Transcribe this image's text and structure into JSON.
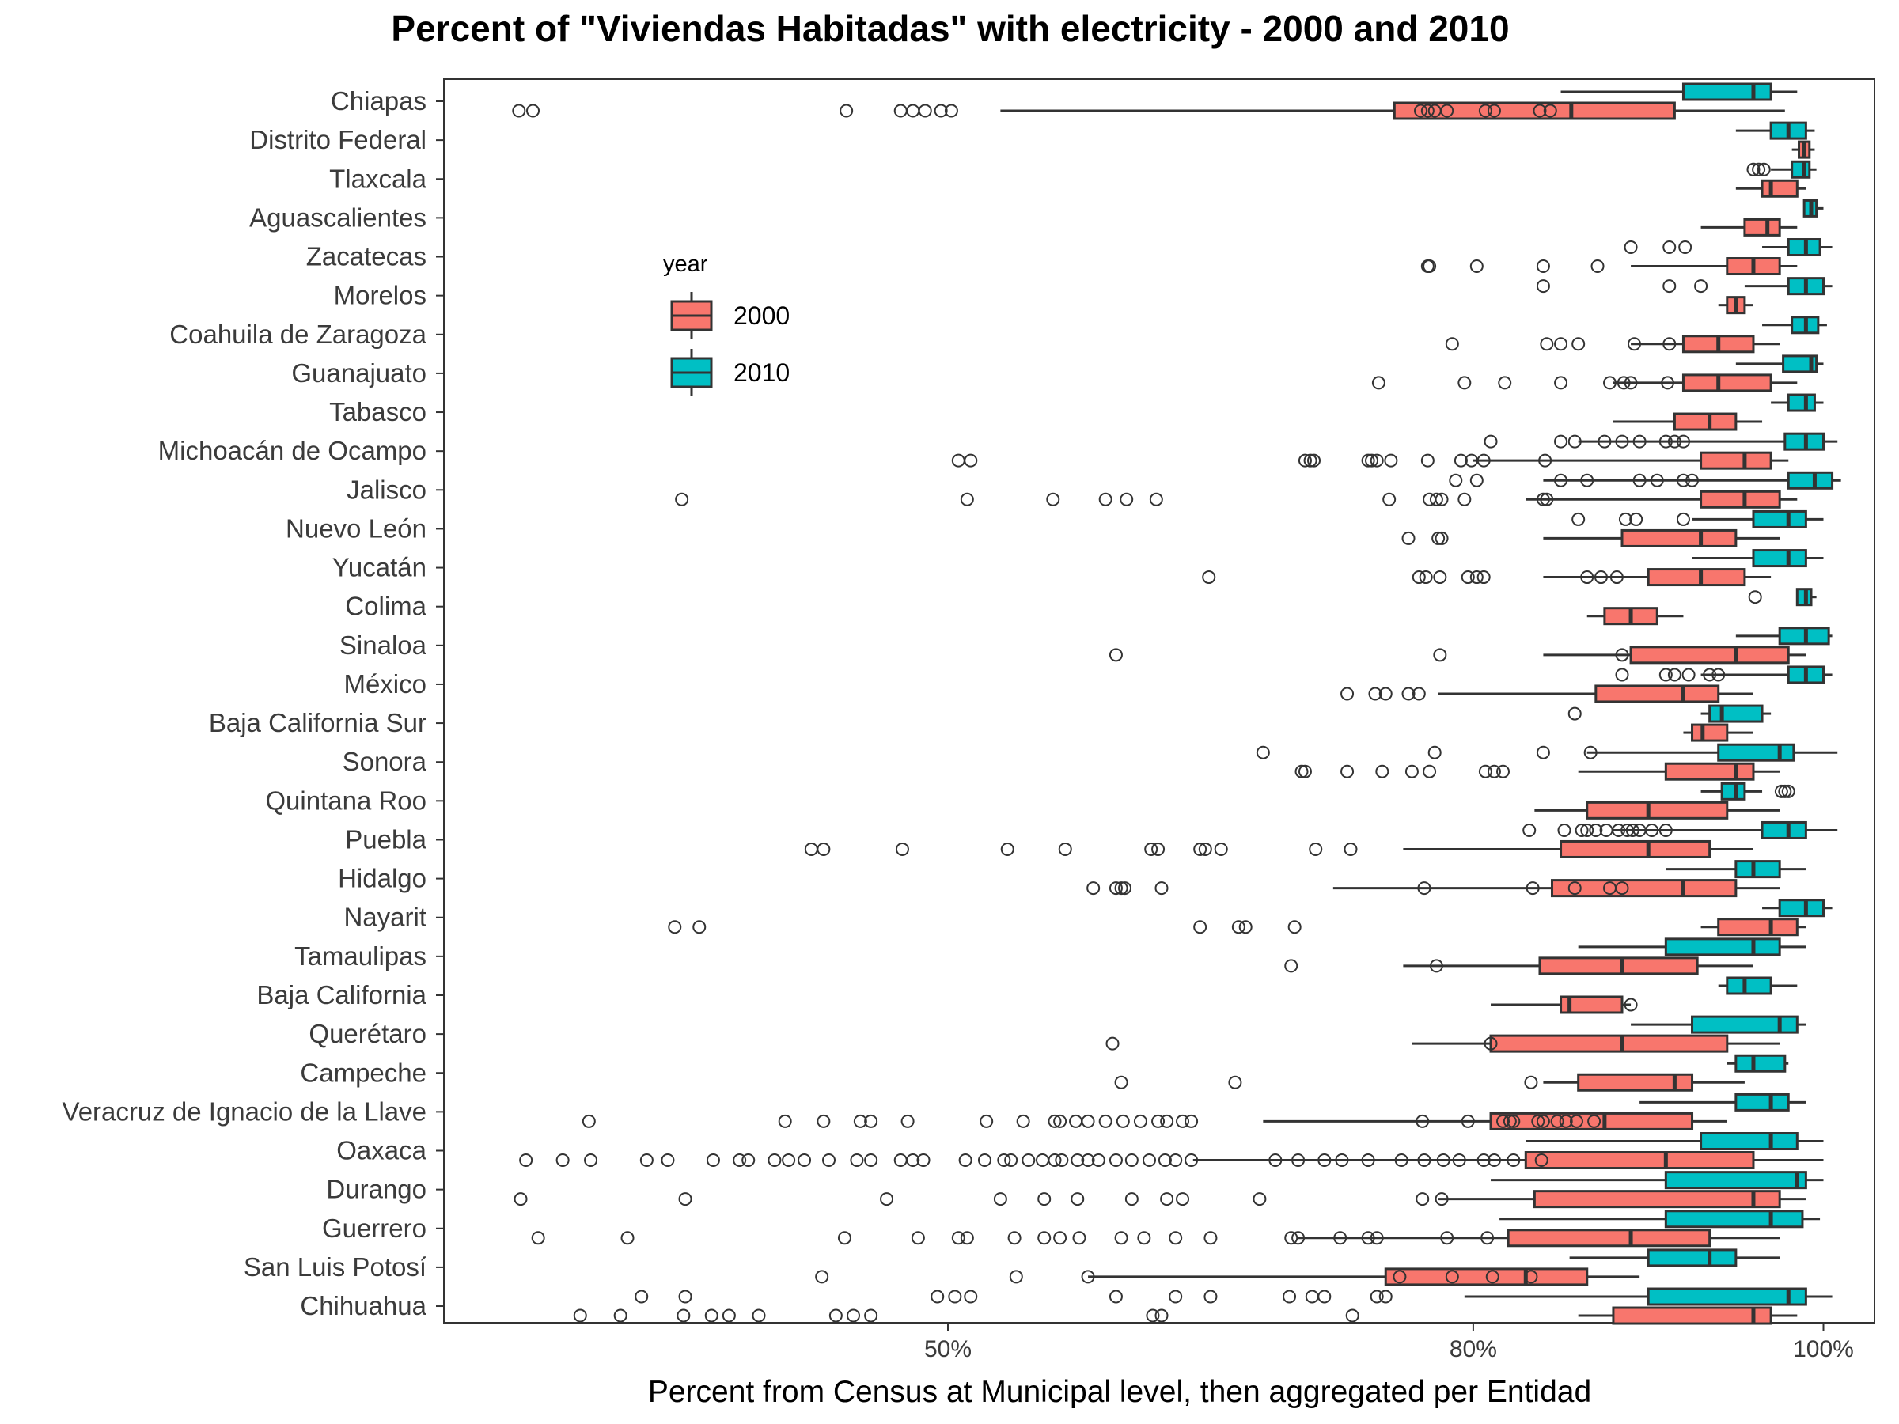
{
  "chart_data": {
    "type": "boxplot",
    "title": "Percent of \"Viviendas Habitadas\" with electricity - 2000 and 2010",
    "xlabel": "Percent from Census at Municipal level, then aggregated per Entidad",
    "ylabel": "",
    "xlim": [
      22,
      103
    ],
    "x_ticks": [
      50,
      80,
      100
    ],
    "x_tick_labels": [
      "50%",
      "80%",
      "100%"
    ],
    "grid": false,
    "legend": {
      "title": "year",
      "position": "left-inside-top",
      "entries": [
        "2000",
        "2010"
      ]
    },
    "colors": {
      "2000": "#f8766d",
      "2010": "#00bfc4"
    },
    "series_order": [
      "2000",
      "2010"
    ],
    "categories": [
      "Chiapas",
      "Distrito Federal",
      "Tlaxcala",
      "Aguascalientes",
      "Zacatecas",
      "Morelos",
      "Coahuila de Zaragoza",
      "Guanajuato",
      "Tabasco",
      "Michoacán de Ocampo",
      "Jalisco",
      "Nuevo León",
      "Yucatán",
      "Colima",
      "Sinaloa",
      "México",
      "Baja California Sur",
      "Sonora",
      "Quintana Roo",
      "Puebla",
      "Hidalgo",
      "Nayarit",
      "Tamaulipas",
      "Baja California",
      "Querétaro",
      "Campeche",
      "Veracruz de Ignacio de la Llave",
      "Oaxaca",
      "Durango",
      "Guerrero",
      "San Luis Potosí",
      "Chihuahua"
    ],
    "boxes": [
      {
        "category": "Chiapas",
        "year": "2000",
        "wlo": 53,
        "q1": 75.5,
        "med": 85.6,
        "q3": 91.5,
        "whi": 97.8,
        "out": [
          25.5,
          26.3,
          44.2,
          47.3,
          48.0,
          48.7,
          49.6,
          50.2,
          77.0,
          77.4,
          77.8,
          78.5,
          80.7,
          81.2,
          83.8,
          84.4
        ]
      },
      {
        "category": "Chiapas",
        "year": "2010",
        "wlo": 85,
        "q1": 92,
        "med": 96,
        "q3": 97,
        "whi": 98.5,
        "out": []
      },
      {
        "category": "Distrito Federal",
        "year": "2000",
        "wlo": 98.2,
        "q1": 98.6,
        "med": 98.9,
        "q3": 99.2,
        "whi": 99.5,
        "out": []
      },
      {
        "category": "Distrito Federal",
        "year": "2010",
        "wlo": 95,
        "q1": 97,
        "med": 98,
        "q3": 99,
        "whi": 99.5,
        "out": []
      },
      {
        "category": "Tlaxcala",
        "year": "2000",
        "wlo": 95,
        "q1": 96.5,
        "med": 97,
        "q3": 98.5,
        "whi": 99,
        "out": []
      },
      {
        "category": "Tlaxcala",
        "year": "2010",
        "wlo": 97,
        "q1": 98.2,
        "med": 98.9,
        "q3": 99.2,
        "whi": 99.6,
        "out": [
          96,
          96.3,
          96.6
        ]
      },
      {
        "category": "Aguascalientes",
        "year": "2000",
        "wlo": 93,
        "q1": 95.5,
        "med": 96.8,
        "q3": 97.5,
        "whi": 98.5,
        "out": []
      },
      {
        "category": "Aguascalientes",
        "year": "2010",
        "wlo": 99.3,
        "q1": 98.9,
        "med": 99.3,
        "q3": 99.6,
        "whi": 100,
        "out": []
      },
      {
        "category": "Zacatecas",
        "year": "2000",
        "wlo": 89,
        "q1": 94.5,
        "med": 96,
        "q3": 97.5,
        "whi": 98.5,
        "out": [
          77.4,
          77.5,
          80.2,
          84,
          87.1
        ]
      },
      {
        "category": "Zacatecas",
        "year": "2010",
        "wlo": 96.5,
        "q1": 98,
        "med": 99,
        "q3": 99.8,
        "whi": 100.5,
        "out": [
          89,
          91.2,
          92.1
        ]
      },
      {
        "category": "Morelos",
        "year": "2000",
        "wlo": 94,
        "q1": 94.5,
        "med": 95,
        "q3": 95.5,
        "whi": 96,
        "out": []
      },
      {
        "category": "Morelos",
        "year": "2010",
        "wlo": 95.5,
        "q1": 98,
        "med": 99,
        "q3": 100,
        "whi": 100.5,
        "out": [
          84,
          91.2,
          93
        ]
      },
      {
        "category": "Coahuila de Zaragoza",
        "year": "2000",
        "wlo": 89,
        "q1": 92,
        "med": 94,
        "q3": 96,
        "whi": 97.5,
        "out": [
          78.8,
          84.2,
          85,
          86,
          89.2,
          91.2
        ]
      },
      {
        "category": "Coahuila de Zaragoza",
        "year": "2010",
        "wlo": 96.5,
        "q1": 98.2,
        "med": 99,
        "q3": 99.7,
        "whi": 100.2,
        "out": []
      },
      {
        "category": "Guanajuato",
        "year": "2000",
        "wlo": 88,
        "q1": 92,
        "med": 94,
        "q3": 97,
        "whi": 98.5,
        "out": [
          74.6,
          79.5,
          81.8,
          85,
          87.8,
          88.6,
          89,
          91.1
        ]
      },
      {
        "category": "Guanajuato",
        "year": "2010",
        "wlo": 95,
        "q1": 97.7,
        "med": 99.3,
        "q3": 99.6,
        "whi": 100,
        "out": []
      },
      {
        "category": "Tabasco",
        "year": "2000",
        "wlo": 88,
        "q1": 91.5,
        "med": 93.5,
        "q3": 95,
        "whi": 96.5,
        "out": []
      },
      {
        "category": "Tabasco",
        "year": "2010",
        "wlo": 97,
        "q1": 98,
        "med": 99,
        "q3": 99.5,
        "whi": 100,
        "out": []
      },
      {
        "category": "Michoacán de Ocampo",
        "year": "2000",
        "wlo": 80,
        "q1": 93,
        "med": 95.5,
        "q3": 97,
        "whi": 98,
        "out": [
          50.6,
          51.3,
          70.4,
          70.7,
          70.9,
          74,
          74.2,
          74.5,
          75.3,
          77.4,
          79.3,
          79.9,
          80.6,
          84.1
        ]
      },
      {
        "category": "Michoacán de Ocampo",
        "year": "2010",
        "wlo": 86,
        "q1": 97.8,
        "med": 99,
        "q3": 100,
        "whi": 100.8,
        "out": [
          81,
          85,
          85.8,
          87.5,
          88.5,
          89.5,
          91,
          91.5,
          92
        ]
      },
      {
        "category": "Jalisco",
        "year": "2000",
        "wlo": 83,
        "q1": 93,
        "med": 95.5,
        "q3": 97.5,
        "whi": 98.5,
        "out": [
          34.8,
          51.1,
          56,
          59,
          60.2,
          61.9,
          75.2,
          77.5,
          77.9,
          78.2,
          79.5,
          84,
          84.2
        ]
      },
      {
        "category": "Jalisco",
        "year": "2010",
        "wlo": 84,
        "q1": 98,
        "med": 99.5,
        "q3": 100.5,
        "whi": 101,
        "out": [
          79,
          80.2,
          85,
          86.5,
          89.5,
          90.5,
          92,
          92.5
        ]
      },
      {
        "category": "Nuevo León",
        "year": "2000",
        "wlo": 84,
        "q1": 88.5,
        "med": 93,
        "q3": 95,
        "whi": 97.5,
        "out": [
          76.3,
          78,
          78.2
        ]
      },
      {
        "category": "Nuevo León",
        "year": "2010",
        "wlo": 92.5,
        "q1": 96,
        "med": 98,
        "q3": 99,
        "whi": 100,
        "out": [
          86,
          88.7,
          89.3,
          92
        ]
      },
      {
        "category": "Yucatán",
        "year": "2000",
        "wlo": 84,
        "q1": 90,
        "med": 93,
        "q3": 95.5,
        "whi": 97,
        "out": [
          64.9,
          76.9,
          77.3,
          78.1,
          79.7,
          80.2,
          80.6,
          86.5,
          87.3,
          88.2
        ]
      },
      {
        "category": "Yucatán",
        "year": "2010",
        "wlo": 92.5,
        "q1": 96,
        "med": 98,
        "q3": 99,
        "whi": 100,
        "out": []
      },
      {
        "category": "Colima",
        "year": "2000",
        "wlo": 86.5,
        "q1": 87.5,
        "med": 89,
        "q3": 90.5,
        "whi": 92,
        "out": []
      },
      {
        "category": "Colima",
        "year": "2010",
        "wlo": 98.5,
        "q1": 98.5,
        "med": 99,
        "q3": 99.3,
        "whi": 99.6,
        "out": [
          96.1
        ]
      },
      {
        "category": "Sinaloa",
        "year": "2000",
        "wlo": 84,
        "q1": 89,
        "med": 95,
        "q3": 98,
        "whi": 99,
        "out": [
          59.6,
          78.1,
          88.5
        ]
      },
      {
        "category": "Sinaloa",
        "year": "2010",
        "wlo": 95,
        "q1": 97.5,
        "med": 99,
        "q3": 100.3,
        "whi": 100.5,
        "out": []
      },
      {
        "category": "México",
        "year": "2000",
        "wlo": 78,
        "q1": 87,
        "med": 92,
        "q3": 94,
        "whi": 96,
        "out": [
          72.8,
          74.4,
          75,
          76.3,
          76.9
        ]
      },
      {
        "category": "México",
        "year": "2010",
        "wlo": 93,
        "q1": 98,
        "med": 99,
        "q3": 100,
        "whi": 100.5,
        "out": [
          88.5,
          91,
          91.5,
          92.3,
          93.5,
          94
        ]
      },
      {
        "category": "Baja California Sur",
        "year": "2000",
        "wlo": 92,
        "q1": 92.5,
        "med": 93.1,
        "q3": 94.5,
        "whi": 96,
        "out": []
      },
      {
        "category": "Baja California Sur",
        "year": "2010",
        "wlo": 93,
        "q1": 93.5,
        "med": 94.2,
        "q3": 96.5,
        "whi": 97,
        "out": [
          85.8
        ]
      },
      {
        "category": "Sonora",
        "year": "2000",
        "wlo": 86,
        "q1": 91,
        "med": 95,
        "q3": 96,
        "whi": 97.5,
        "out": [
          70.2,
          70.4,
          72.8,
          74.8,
          76.5,
          77.5,
          80.7,
          81.2,
          81.7
        ]
      },
      {
        "category": "Sonora",
        "year": "2010",
        "wlo": 86.5,
        "q1": 94,
        "med": 97.5,
        "q3": 98.3,
        "whi": 100.8,
        "out": [
          68,
          77.8,
          84,
          86.7
        ]
      },
      {
        "category": "Quintana Roo",
        "year": "2000",
        "wlo": 83.5,
        "q1": 86.5,
        "med": 90,
        "q3": 94.5,
        "whi": 97.5,
        "out": []
      },
      {
        "category": "Quintana Roo",
        "year": "2010",
        "wlo": 93,
        "q1": 94.2,
        "med": 95,
        "q3": 95.5,
        "whi": 96.5,
        "out": [
          97.6,
          97.8,
          98
        ]
      },
      {
        "category": "Puebla",
        "year": "2000",
        "wlo": 76,
        "q1": 85,
        "med": 90,
        "q3": 93.5,
        "whi": 96,
        "out": [
          42.2,
          42.9,
          47.4,
          53.4,
          56.7,
          61.6,
          62,
          64.4,
          64.7,
          65.6,
          71,
          73
        ]
      },
      {
        "category": "Puebla",
        "year": "2010",
        "wlo": 88,
        "q1": 96.5,
        "med": 98,
        "q3": 99,
        "whi": 100.8,
        "out": [
          83.2,
          85.2,
          86.2,
          86.5,
          87,
          87.6,
          88.3,
          88.8,
          89.1,
          89.5,
          90.2,
          91
        ]
      },
      {
        "category": "Hidalgo",
        "year": "2000",
        "wlo": 72,
        "q1": 84.5,
        "med": 92,
        "q3": 95,
        "whi": 97.5,
        "out": [
          58.3,
          59.6,
          59.9,
          60.1,
          62.2,
          77.2,
          83.4,
          85.8,
          87.8,
          88.5
        ]
      },
      {
        "category": "Hidalgo",
        "year": "2010",
        "wlo": 91,
        "q1": 95,
        "med": 96,
        "q3": 97.5,
        "whi": 99,
        "out": []
      },
      {
        "category": "Nayarit",
        "year": "2000",
        "wlo": 93,
        "q1": 94,
        "med": 97,
        "q3": 98.5,
        "whi": 99,
        "out": [
          34.4,
          35.8,
          64.4,
          66.6,
          67,
          69.8
        ]
      },
      {
        "category": "Nayarit",
        "year": "2010",
        "wlo": 96.5,
        "q1": 97.5,
        "med": 99,
        "q3": 100,
        "whi": 100.5,
        "out": []
      },
      {
        "category": "Tamaulipas",
        "year": "2000",
        "wlo": 76,
        "q1": 83.8,
        "med": 88.5,
        "q3": 92.8,
        "whi": 96,
        "out": [
          69.6,
          77.9
        ]
      },
      {
        "category": "Tamaulipas",
        "year": "2010",
        "wlo": 86,
        "q1": 91,
        "med": 96,
        "q3": 97.5,
        "whi": 99,
        "out": []
      },
      {
        "category": "Baja California",
        "year": "2000",
        "wlo": 81,
        "q1": 85,
        "med": 85.5,
        "q3": 88.5,
        "whi": 89,
        "out": [
          89
        ]
      },
      {
        "category": "Baja California",
        "year": "2010",
        "wlo": 94,
        "q1": 94.5,
        "med": 95.5,
        "q3": 97,
        "whi": 98.5,
        "out": []
      },
      {
        "category": "Querétaro",
        "year": "2000",
        "wlo": 76.5,
        "q1": 81,
        "med": 88.5,
        "q3": 94.5,
        "whi": 97.5,
        "out": [
          59.4,
          81
        ]
      },
      {
        "category": "Querétaro",
        "year": "2010",
        "wlo": 89,
        "q1": 92.5,
        "med": 97.5,
        "q3": 98.5,
        "whi": 99,
        "out": []
      },
      {
        "category": "Campeche",
        "year": "2000",
        "wlo": 84,
        "q1": 86,
        "med": 91.5,
        "q3": 92.5,
        "whi": 95.5,
        "out": [
          59.9,
          66.4,
          83.3
        ]
      },
      {
        "category": "Campeche",
        "year": "2010",
        "wlo": 94.5,
        "q1": 95,
        "med": 96,
        "q3": 97.8,
        "whi": 98,
        "out": []
      },
      {
        "category": "Veracruz de Ignacio de la Llave",
        "year": "2000",
        "wlo": 68,
        "q1": 81,
        "med": 87.5,
        "q3": 92.5,
        "whi": 94.5,
        "out": [
          29.5,
          40.7,
          42.9,
          45,
          45.6,
          47.7,
          52.2,
          54.3,
          56.1,
          56.4,
          57.3,
          58,
          59,
          60,
          61,
          62,
          62.5,
          63.4,
          63.9,
          77.1,
          79.7,
          81.7,
          82.1,
          82.3,
          83.7,
          84,
          84.8,
          85.3,
          85.9,
          86.9
        ]
      },
      {
        "category": "Veracruz de Ignacio de la Llave",
        "year": "2010",
        "wlo": 89.5,
        "q1": 95,
        "med": 97,
        "q3": 98,
        "whi": 99,
        "out": []
      },
      {
        "category": "Oaxaca",
        "year": "2000",
        "wlo": 64,
        "q1": 83,
        "med": 91,
        "q3": 96,
        "whi": 100,
        "out": [
          25.9,
          28,
          29.6,
          32.8,
          34,
          36.6,
          38.1,
          38.6,
          40.1,
          40.9,
          41.8,
          43.2,
          44.8,
          45.6,
          47.3,
          48,
          48.6,
          51,
          52.1,
          53.2,
          53.6,
          54.6,
          55.4,
          56.1,
          56.5,
          57.4,
          58,
          58.6,
          59.6,
          60.5,
          61.5,
          62.4,
          63,
          63.9,
          68.7,
          70,
          71.5,
          72.5,
          74,
          75.9,
          77.2,
          78.3,
          79.2,
          80.6,
          81.2,
          82.3,
          83.9
        ]
      },
      {
        "category": "Oaxaca",
        "year": "2010",
        "wlo": 83,
        "q1": 93,
        "med": 97,
        "q3": 98.5,
        "whi": 100,
        "out": []
      },
      {
        "category": "Durango",
        "year": "2000",
        "wlo": 78,
        "q1": 83.5,
        "med": 96,
        "q3": 97.5,
        "whi": 99,
        "out": [
          25.6,
          35,
          46.5,
          53,
          55.5,
          57.4,
          60.5,
          62.5,
          63.4,
          67.8,
          77.1,
          78.2
        ]
      },
      {
        "category": "Durango",
        "year": "2010",
        "wlo": 81,
        "q1": 91,
        "med": 98.5,
        "q3": 99,
        "whi": 100,
        "out": []
      },
      {
        "category": "Guerrero",
        "year": "2000",
        "wlo": 70,
        "q1": 82,
        "med": 89,
        "q3": 93.5,
        "whi": 97.5,
        "out": [
          26.6,
          31.7,
          44.1,
          48.3,
          50.6,
          51.1,
          53.8,
          55.5,
          56.4,
          57.5,
          59.9,
          61.2,
          63,
          65,
          69.6,
          70,
          72.4,
          74,
          74.5,
          78.5,
          80.8
        ]
      },
      {
        "category": "Guerrero",
        "year": "2010",
        "wlo": 81.5,
        "q1": 91,
        "med": 97,
        "q3": 98.8,
        "whi": 99.8,
        "out": []
      },
      {
        "category": "San Luis Potosí",
        "year": "2000",
        "wlo": 58,
        "q1": 75,
        "med": 83,
        "q3": 86.5,
        "whi": 89.5,
        "out": [
          42.8,
          53.9,
          58,
          75.8,
          78.8,
          81.1,
          83.3
        ]
      },
      {
        "category": "San Luis Potosí",
        "year": "2010",
        "wlo": 85.5,
        "q1": 90,
        "med": 93.5,
        "q3": 95,
        "whi": 97.5,
        "out": []
      },
      {
        "category": "Chihuahua",
        "year": "2000",
        "wlo": 86,
        "q1": 88,
        "med": 96,
        "q3": 97,
        "whi": 98.5,
        "out": [
          29,
          31.3,
          34.9,
          36.5,
          37.5,
          39.2,
          43.6,
          44.6,
          45.6,
          61.7,
          62.2,
          73.1
        ]
      },
      {
        "category": "Chihuahua",
        "year": "2010",
        "wlo": 79.5,
        "q1": 90,
        "med": 98,
        "q3": 99,
        "whi": 100.5,
        "out": [
          32.5,
          35,
          49.4,
          50.4,
          51.3,
          59.6,
          63,
          65,
          69.5,
          70.8,
          71.5,
          74.5,
          75
        ]
      }
    ]
  }
}
